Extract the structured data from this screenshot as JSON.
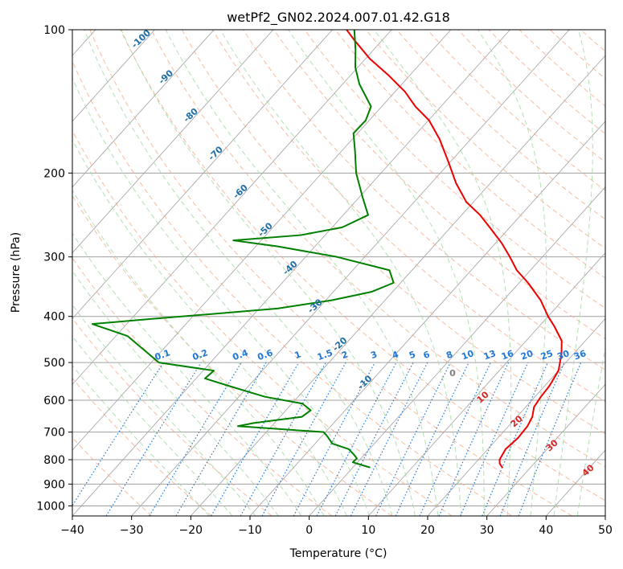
{
  "chart_data": {
    "type": "line",
    "chart_kind": "skew-T log-P diagram",
    "title": "wetPf2_GN02.2024.007.01.42.G18",
    "xlabel": "Temperature (°C)",
    "ylabel": "Pressure (hPa)",
    "xlim": [
      -40,
      50
    ],
    "ylim": [
      1050,
      100
    ],
    "y_scale": "log",
    "grid": true,
    "x_ticks": [
      -40,
      -30,
      -20,
      -10,
      0,
      10,
      20,
      30,
      40,
      50
    ],
    "x_tick_labels": [
      "−40",
      "−30",
      "−20",
      "−10",
      "0",
      "10",
      "20",
      "30",
      "40",
      "50"
    ],
    "y_ticks": [
      100,
      200,
      300,
      400,
      500,
      600,
      700,
      800,
      900,
      1000
    ],
    "y_tick_labels": [
      "100",
      "200",
      "300",
      "400",
      "500",
      "600",
      "700",
      "800",
      "900",
      "1000"
    ],
    "colors": {
      "temperature": "#ee0000",
      "dewpoint": "#008000",
      "isotherm": "#a0a0a0",
      "dry_adiabat": "#f4a582",
      "moist_adiabat": "#a6d9a6",
      "mixing_ratio": "#1f77d8",
      "dry_adiabat_label": "#d62728",
      "isotherm_label": "#1f6fa8",
      "ccl_label": "#7f7f7f"
    },
    "series": [
      {
        "name": "",
        "role": "temperature",
        "color": "#ee0000",
        "points": [
          {
            "p": 830,
            "t": 25.2
          },
          {
            "p": 815,
            "t": 24.2
          },
          {
            "p": 800,
            "t": 23.6
          },
          {
            "p": 760,
            "t": 23.0
          },
          {
            "p": 720,
            "t": 23.4
          },
          {
            "p": 680,
            "t": 23.2
          },
          {
            "p": 650,
            "t": 22.6
          },
          {
            "p": 620,
            "t": 21.4
          },
          {
            "p": 590,
            "t": 21.0
          },
          {
            "p": 560,
            "t": 20.8
          },
          {
            "p": 520,
            "t": 20.0
          },
          {
            "p": 480,
            "t": 18.0
          },
          {
            "p": 450,
            "t": 16.0
          },
          {
            "p": 420,
            "t": 12.6
          },
          {
            "p": 400,
            "t": 10.0
          },
          {
            "p": 370,
            "t": 6.3
          },
          {
            "p": 340,
            "t": 1.5
          },
          {
            "p": 320,
            "t": -2.3
          },
          {
            "p": 300,
            "t": -5.5
          },
          {
            "p": 280,
            "t": -9.1
          },
          {
            "p": 260,
            "t": -13.4
          },
          {
            "p": 245,
            "t": -16.9
          },
          {
            "p": 230,
            "t": -21.2
          },
          {
            "p": 210,
            "t": -25.8
          },
          {
            "p": 190,
            "t": -30.2
          },
          {
            "p": 170,
            "t": -35.2
          },
          {
            "p": 155,
            "t": -39.9
          },
          {
            "p": 145,
            "t": -44.3
          },
          {
            "p": 135,
            "t": -48.3
          },
          {
            "p": 125,
            "t": -53.4
          },
          {
            "p": 115,
            "t": -59.3
          },
          {
            "p": 105,
            "t": -64.8
          },
          {
            "p": 100,
            "t": -67.6
          }
        ]
      },
      {
        "name": "",
        "role": "dewpoint",
        "color": "#008000",
        "points": [
          {
            "p": 830,
            "t": 2.8
          },
          {
            "p": 820,
            "t": 1.0
          },
          {
            "p": 810,
            "t": -0.8
          },
          {
            "p": 795,
            "t": -0.7
          },
          {
            "p": 780,
            "t": -1.8
          },
          {
            "p": 760,
            "t": -3.5
          },
          {
            "p": 740,
            "t": -7.1
          },
          {
            "p": 715,
            "t": -9.0
          },
          {
            "p": 700,
            "t": -10.3
          },
          {
            "p": 690,
            "t": -17.9
          },
          {
            "p": 680,
            "t": -25.7
          },
          {
            "p": 670,
            "t": -23.5
          },
          {
            "p": 650,
            "t": -16.3
          },
          {
            "p": 630,
            "t": -15.8
          },
          {
            "p": 610,
            "t": -18.2
          },
          {
            "p": 590,
            "t": -25.6
          },
          {
            "p": 560,
            "t": -33.3
          },
          {
            "p": 540,
            "t": -38.5
          },
          {
            "p": 520,
            "t": -38.2
          },
          {
            "p": 500,
            "t": -48.7
          },
          {
            "p": 440,
            "t": -58.0
          },
          {
            "p": 415,
            "t": -65.8
          },
          {
            "p": 405,
            "t": -56.7
          },
          {
            "p": 395,
            "t": -46.8
          },
          {
            "p": 385,
            "t": -36.9
          },
          {
            "p": 370,
            "t": -29.0
          },
          {
            "p": 355,
            "t": -23.5
          },
          {
            "p": 340,
            "t": -21.2
          },
          {
            "p": 320,
            "t": -23.8
          },
          {
            "p": 300,
            "t": -34.7
          },
          {
            "p": 285,
            "t": -46.4
          },
          {
            "p": 277,
            "t": -54.7
          },
          {
            "p": 270,
            "t": -44.1
          },
          {
            "p": 260,
            "t": -38.3
          },
          {
            "p": 245,
            "t": -35.8
          },
          {
            "p": 225,
            "t": -39.4
          },
          {
            "p": 200,
            "t": -44.2
          },
          {
            "p": 180,
            "t": -47.7
          },
          {
            "p": 165,
            "t": -50.7
          },
          {
            "p": 155,
            "t": -50.6
          },
          {
            "p": 145,
            "t": -51.8
          },
          {
            "p": 130,
            "t": -57.2
          },
          {
            "p": 120,
            "t": -60.4
          },
          {
            "p": 110,
            "t": -63.1
          },
          {
            "p": 100,
            "t": -66.3
          }
        ]
      }
    ],
    "mixing_ratio_labels": [
      "0.1",
      "0.2",
      "0.4",
      "0.6",
      "1",
      "1.5",
      "2",
      "3",
      "4",
      "5",
      "6",
      "8",
      "10",
      "13",
      "16",
      "20",
      "25",
      "30",
      "36"
    ],
    "mixing_ratio_values": [
      0.1,
      0.2,
      0.4,
      0.6,
      1,
      1.5,
      2,
      3,
      4,
      5,
      6,
      8,
      10,
      13,
      16,
      20,
      25,
      30,
      36
    ],
    "isotherm_labels": [
      "-100",
      "-90",
      "-80",
      "-70",
      "-60",
      "-50",
      "-40",
      "-30",
      "-20",
      "-10"
    ],
    "isotherm_values": [
      -100,
      -90,
      -80,
      -70,
      -60,
      -50,
      -40,
      -30,
      -20,
      -10
    ],
    "dry_adiabat_labels": [
      "10",
      "20",
      "30",
      "40"
    ],
    "dry_adiabat_label_values": [
      10,
      20,
      30,
      40
    ],
    "ccl_label": "0"
  }
}
